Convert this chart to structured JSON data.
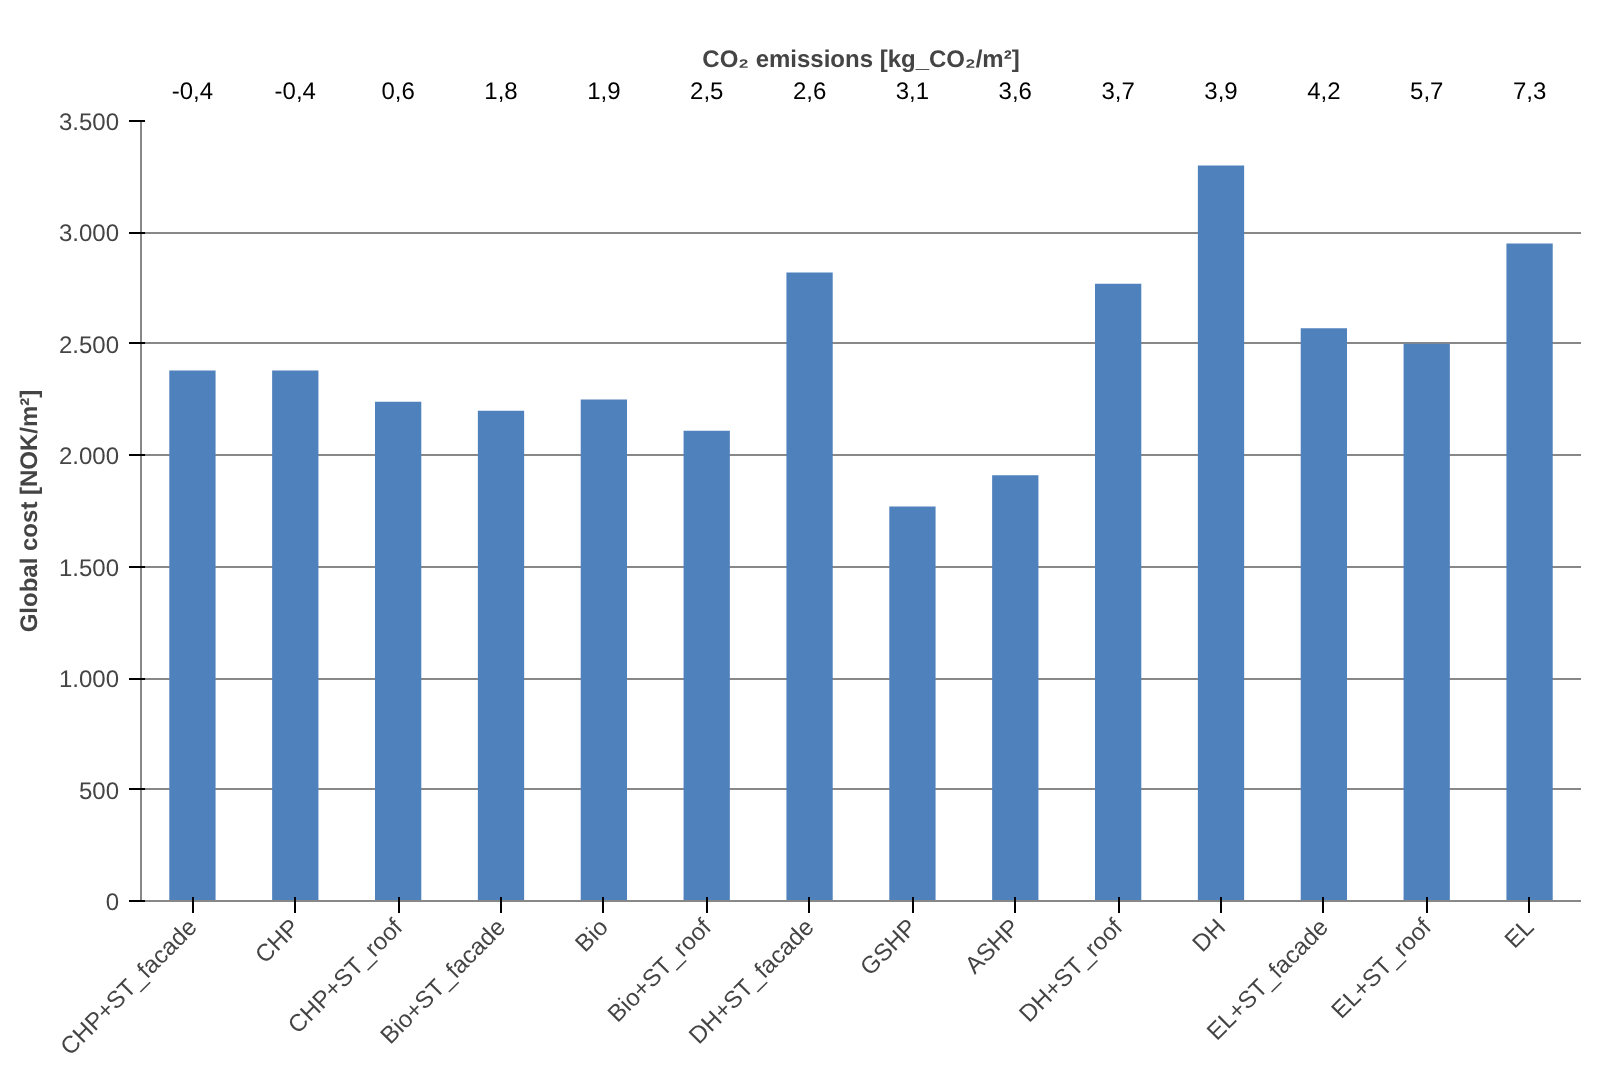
{
  "chart_data": {
    "type": "bar",
    "title": "CO₂ emissions [kg_CO₂/m²]",
    "ylabel": "Global cost [NOK/m²]",
    "categories": [
      "CHP+ST_facade",
      "CHP",
      "CHP+ST_roof",
      "Bio+ST_facade",
      "Bio",
      "Bio+ST_roof",
      "DH+ST_facade",
      "GSHP",
      "ASHP",
      "DH+ST_roof",
      "DH",
      "EL+ST_facade",
      "EL+ST_roof",
      "EL"
    ],
    "values": [
      2380,
      2380,
      2240,
      2200,
      2250,
      2110,
      2820,
      1770,
      1910,
      2770,
      3300,
      2570,
      2500,
      2950
    ],
    "color": "#4f81bd",
    "ylim": [
      0,
      3500
    ],
    "yticks": [
      0,
      500,
      {
        "value": 1000,
        "label": "1.000"
      },
      {
        "value": 1500,
        "label": "1.500"
      },
      {
        "value": 2000,
        "label": "2.000"
      },
      {
        "value": 2500,
        "label": "2.500"
      },
      {
        "value": 3000,
        "label": "3.000"
      },
      {
        "value": 3500,
        "label": "3.500"
      }
    ],
    "grid": "y",
    "annotations": [
      "-0,4",
      "-0,4",
      "0,6",
      "1,8",
      "1,9",
      "2,5",
      "2,6",
      "3,1",
      "3,6",
      "3,7",
      "3,9",
      "4,2",
      "5,7",
      "7,3"
    ]
  }
}
